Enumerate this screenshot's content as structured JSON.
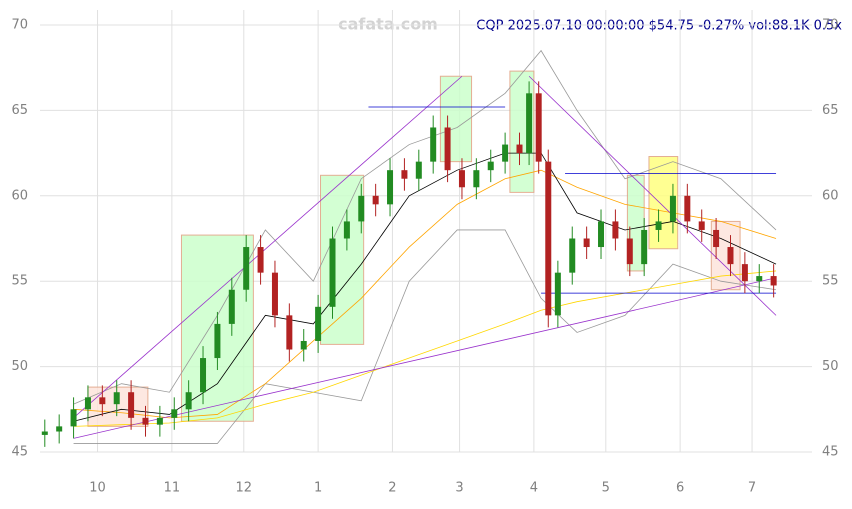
{
  "chart_data": {
    "type": "candlestick",
    "title": "CQP 2025.07.10 00:00:00 $54.75 -0.27% vol:88.1K 0.5x",
    "watermark": "cafata.com",
    "xlim": [
      -24,
      298
    ],
    "xticks": [
      {
        "value": 0,
        "label": "10"
      },
      {
        "value": 31,
        "label": "11"
      },
      {
        "value": 61,
        "label": "12"
      },
      {
        "value": 92,
        "label": "1"
      },
      {
        "value": 123,
        "label": "2"
      },
      {
        "value": 151,
        "label": "3"
      },
      {
        "value": 182,
        "label": "4"
      },
      {
        "value": 212,
        "label": "5"
      },
      {
        "value": 243,
        "label": "6"
      },
      {
        "value": 273,
        "label": "7"
      }
    ],
    "ylim": [
      45,
      70
    ],
    "yticks": [
      45,
      50,
      55,
      60,
      65,
      70
    ],
    "grid": true,
    "up_color": "#228b22",
    "down_color": "#b22222",
    "x": [
      -22,
      -16,
      -10,
      -4,
      2,
      8,
      14,
      20,
      26,
      32,
      38,
      44,
      50,
      56,
      62,
      68,
      74,
      80,
      86,
      92,
      98,
      104,
      110,
      116,
      122,
      128,
      134,
      140,
      146,
      152,
      158,
      164,
      170,
      176,
      180,
      184,
      188,
      192,
      198,
      204,
      210,
      216,
      222,
      228,
      234,
      240,
      246,
      252,
      258,
      264,
      270,
      276,
      282
    ],
    "open": [
      46.0,
      46.2,
      46.5,
      47.5,
      48.2,
      47.8,
      48.5,
      47.0,
      46.6,
      47.0,
      47.5,
      48.5,
      50.5,
      52.5,
      54.5,
      57.0,
      55.5,
      53.0,
      51.0,
      51.5,
      53.5,
      57.5,
      58.5,
      60.0,
      59.5,
      61.5,
      61.0,
      62.0,
      64.0,
      61.5,
      60.5,
      61.5,
      62.0,
      63.0,
      62.5,
      66.0,
      62.0,
      53.0,
      55.5,
      57.5,
      57.0,
      58.5,
      57.5,
      56.0,
      58.0,
      58.5,
      60.0,
      58.5,
      58.0,
      57.0,
      56.0,
      55.0,
      55.3
    ],
    "high": [
      46.9,
      47.2,
      48.2,
      48.9,
      48.9,
      49.2,
      49.2,
      47.7,
      47.7,
      48.2,
      49.2,
      51.2,
      53.2,
      55.2,
      57.7,
      57.7,
      56.2,
      53.7,
      52.2,
      54.2,
      58.2,
      59.2,
      60.7,
      60.7,
      62.2,
      62.2,
      62.7,
      64.7,
      64.7,
      62.2,
      62.2,
      62.7,
      63.7,
      63.7,
      66.7,
      66.7,
      62.7,
      56.2,
      58.2,
      58.2,
      59.2,
      59.2,
      58.2,
      58.7,
      59.2,
      60.7,
      60.7,
      59.2,
      58.7,
      57.7,
      56.7,
      56.0,
      56.0
    ],
    "low": [
      45.3,
      45.5,
      45.8,
      46.8,
      47.1,
      47.1,
      46.3,
      45.9,
      45.9,
      46.3,
      46.8,
      47.8,
      49.8,
      51.8,
      53.8,
      54.8,
      52.3,
      50.3,
      50.3,
      50.8,
      52.8,
      56.8,
      57.8,
      58.8,
      58.8,
      60.3,
      60.3,
      61.3,
      60.8,
      59.8,
      59.8,
      60.8,
      61.3,
      61.8,
      61.8,
      61.3,
      52.3,
      52.3,
      54.8,
      56.3,
      56.3,
      56.8,
      55.3,
      55.3,
      57.3,
      57.8,
      57.8,
      57.3,
      56.3,
      55.3,
      54.3,
      54.3,
      54.05
    ],
    "close": [
      46.2,
      46.5,
      47.5,
      48.2,
      47.8,
      48.5,
      47.0,
      46.6,
      47.0,
      47.5,
      48.5,
      50.5,
      52.5,
      54.5,
      57.0,
      55.5,
      53.0,
      51.0,
      51.5,
      53.5,
      57.5,
      58.5,
      60.0,
      59.5,
      61.5,
      61.0,
      62.0,
      64.0,
      61.5,
      60.5,
      61.5,
      62.0,
      63.0,
      62.5,
      66.0,
      62.0,
      53.0,
      55.5,
      57.5,
      57.0,
      58.5,
      57.5,
      56.0,
      58.0,
      58.5,
      60.0,
      58.5,
      58.0,
      57.0,
      56.0,
      55.0,
      55.3,
      54.75
    ],
    "zones": [
      {
        "x0": -4,
        "x1": 21,
        "y0": 46.5,
        "y1": 48.8,
        "color": "#fde4dc"
      },
      {
        "x0": 35,
        "x1": 65,
        "y0": 46.8,
        "y1": 57.7,
        "color": "#ccffcc"
      },
      {
        "x0": 93,
        "x1": 111,
        "y0": 51.3,
        "y1": 61.2,
        "color": "#ccffcc"
      },
      {
        "x0": 143,
        "x1": 156,
        "y0": 62.0,
        "y1": 67.0,
        "color": "#ccffcc"
      },
      {
        "x0": 172,
        "x1": 182,
        "y0": 60.2,
        "y1": 67.3,
        "color": "#ccffcc"
      },
      {
        "x0": 221,
        "x1": 228,
        "y0": 55.6,
        "y1": 61.2,
        "color": "#ccffcc"
      },
      {
        "x0": 230,
        "x1": 242,
        "y0": 56.9,
        "y1": 62.3,
        "color": "#ffff80"
      },
      {
        "x0": 256,
        "x1": 268,
        "y0": 54.5,
        "y1": 58.5,
        "color": "#fde4dc"
      }
    ],
    "overlays": [
      {
        "color": "#999999",
        "x": [
          -10,
          10,
          30,
          50,
          70,
          90,
          110,
          130,
          150,
          170,
          185,
          200,
          220,
          240,
          260,
          283
        ],
        "values": [
          47.8,
          49,
          48.5,
          53,
          58,
          55,
          61,
          63,
          64,
          66,
          68.5,
          65,
          61,
          62,
          61,
          58
        ]
      },
      {
        "color": "#999999",
        "x": [
          -10,
          10,
          30,
          50,
          70,
          90,
          110,
          130,
          150,
          170,
          185,
          200,
          220,
          240,
          260,
          283
        ],
        "values": [
          45.5,
          45.5,
          45.5,
          45.5,
          49,
          48.5,
          48,
          55,
          58,
          58,
          54,
          52,
          53,
          56,
          55,
          54.5
        ]
      },
      {
        "color": "#ffd700",
        "x": [
          -10,
          10,
          30,
          50,
          70,
          90,
          110,
          130,
          150,
          170,
          185,
          200,
          220,
          240,
          260,
          283
        ],
        "values": [
          46.5,
          46.6,
          46.7,
          47,
          47.8,
          48.5,
          49.5,
          50.5,
          51.5,
          52.5,
          53.3,
          53.8,
          54.3,
          54.8,
          55.3,
          55.6
        ]
      },
      {
        "color": "#ffa500",
        "x": [
          -10,
          10,
          30,
          50,
          70,
          90,
          110,
          130,
          150,
          170,
          185,
          200,
          220,
          240,
          260,
          283
        ],
        "values": [
          47.5,
          47.3,
          47,
          47.2,
          49,
          51.5,
          54,
          57,
          59.5,
          61,
          61.5,
          60.5,
          59.5,
          59,
          58.5,
          57.5
        ]
      },
      {
        "color": "#000000",
        "x": [
          -10,
          10,
          30,
          50,
          70,
          90,
          110,
          130,
          150,
          170,
          185,
          200,
          220,
          240,
          260,
          283
        ],
        "values": [
          46.8,
          47.5,
          47.2,
          49,
          53,
          52.5,
          56,
          60,
          61.5,
          62.5,
          62.5,
          59,
          58,
          58.5,
          57.5,
          56
        ]
      },
      {
        "color": "#9932cc",
        "x": [
          -10,
          152
        ],
        "values": [
          47,
          67
        ]
      },
      {
        "color": "#9932cc",
        "x": [
          180,
          283
        ],
        "values": [
          67,
          53
        ]
      },
      {
        "color": "#9932cc",
        "x": [
          -10,
          283
        ],
        "values": [
          45.8,
          55.2
        ]
      },
      {
        "color": "#0000cd",
        "x": [
          113,
          170
        ],
        "values": [
          65.2,
          65.2
        ]
      },
      {
        "color": "#0000cd",
        "x": [
          195,
          283
        ],
        "values": [
          61.3,
          61.3
        ]
      },
      {
        "color": "#0000cd",
        "x": [
          185,
          283
        ],
        "values": [
          54.3,
          54.3
        ]
      }
    ]
  }
}
